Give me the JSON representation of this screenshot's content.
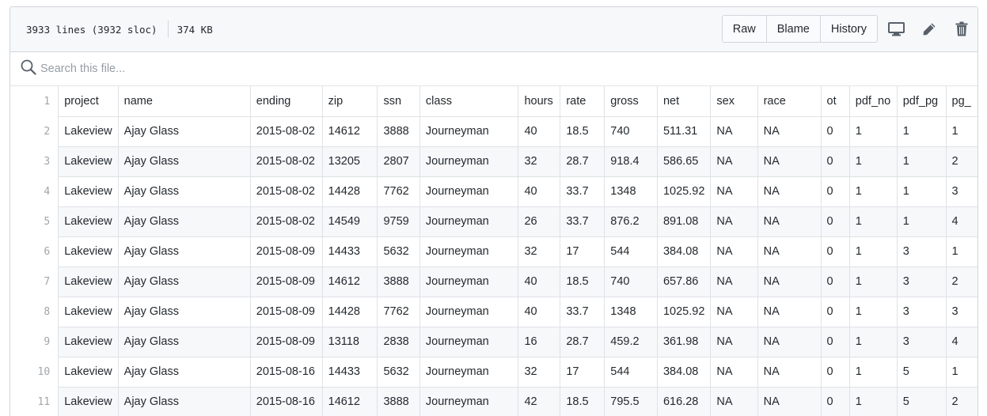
{
  "file": {
    "lines_info": "3933 lines (3932 sloc)",
    "size": "374 KB",
    "buttons": {
      "raw": "Raw",
      "blame": "Blame",
      "history": "History"
    },
    "icons": [
      "desktop-icon",
      "pencil-icon",
      "trash-icon"
    ]
  },
  "search": {
    "placeholder": "Search this file..."
  },
  "table": {
    "header_line": "1",
    "columns": [
      "project",
      "name",
      "ending",
      "zip",
      "ssn",
      "class",
      "hours",
      "rate",
      "gross",
      "net",
      "sex",
      "race",
      "ot",
      "pdf_no",
      "pdf_pg",
      "pg_"
    ],
    "rows": [
      {
        "line": "2",
        "cells": [
          "Lakeview",
          "Ajay Glass",
          "2015-08-02",
          "14612",
          "3888",
          "Journeyman",
          "40",
          "18.5",
          "740",
          "511.31",
          "NA",
          "NA",
          "0",
          "1",
          "1",
          "1"
        ]
      },
      {
        "line": "3",
        "cells": [
          "Lakeview",
          "Ajay Glass",
          "2015-08-02",
          "13205",
          "2807",
          "Journeyman",
          "32",
          "28.7",
          "918.4",
          "586.65",
          "NA",
          "NA",
          "0",
          "1",
          "1",
          "2"
        ]
      },
      {
        "line": "4",
        "cells": [
          "Lakeview",
          "Ajay Glass",
          "2015-08-02",
          "14428",
          "7762",
          "Journeyman",
          "40",
          "33.7",
          "1348",
          "1025.92",
          "NA",
          "NA",
          "0",
          "1",
          "1",
          "3"
        ]
      },
      {
        "line": "5",
        "cells": [
          "Lakeview",
          "Ajay Glass",
          "2015-08-02",
          "14549",
          "9759",
          "Journeyman",
          "26",
          "33.7",
          "876.2",
          "891.08",
          "NA",
          "NA",
          "0",
          "1",
          "1",
          "4"
        ]
      },
      {
        "line": "6",
        "cells": [
          "Lakeview",
          "Ajay Glass",
          "2015-08-09",
          "14433",
          "5632",
          "Journeyman",
          "32",
          "17",
          "544",
          "384.08",
          "NA",
          "NA",
          "0",
          "1",
          "3",
          "1"
        ]
      },
      {
        "line": "7",
        "cells": [
          "Lakeview",
          "Ajay Glass",
          "2015-08-09",
          "14612",
          "3888",
          "Journeyman",
          "40",
          "18.5",
          "740",
          "657.86",
          "NA",
          "NA",
          "0",
          "1",
          "3",
          "2"
        ]
      },
      {
        "line": "8",
        "cells": [
          "Lakeview",
          "Ajay Glass",
          "2015-08-09",
          "14428",
          "7762",
          "Journeyman",
          "40",
          "33.7",
          "1348",
          "1025.92",
          "NA",
          "NA",
          "0",
          "1",
          "3",
          "3"
        ]
      },
      {
        "line": "9",
        "cells": [
          "Lakeview",
          "Ajay Glass",
          "2015-08-09",
          "13118",
          "2838",
          "Journeyman",
          "16",
          "28.7",
          "459.2",
          "361.98",
          "NA",
          "NA",
          "0",
          "1",
          "3",
          "4"
        ]
      },
      {
        "line": "10",
        "cells": [
          "Lakeview",
          "Ajay Glass",
          "2015-08-16",
          "14433",
          "5632",
          "Journeyman",
          "32",
          "17",
          "544",
          "384.08",
          "NA",
          "NA",
          "0",
          "1",
          "5",
          "1"
        ]
      },
      {
        "line": "11",
        "cells": [
          "Lakeview",
          "Ajay Glass",
          "2015-08-16",
          "14612",
          "3888",
          "Journeyman",
          "42",
          "18.5",
          "795.5",
          "616.28",
          "NA",
          "NA",
          "0",
          "1",
          "5",
          "2"
        ]
      }
    ]
  },
  "colors": {
    "header_bg": "#f6f8fa",
    "border": "#d1d5da",
    "stripe": "#f6f8fa",
    "line_number": "#a1a6ac",
    "icon": "#586069"
  }
}
